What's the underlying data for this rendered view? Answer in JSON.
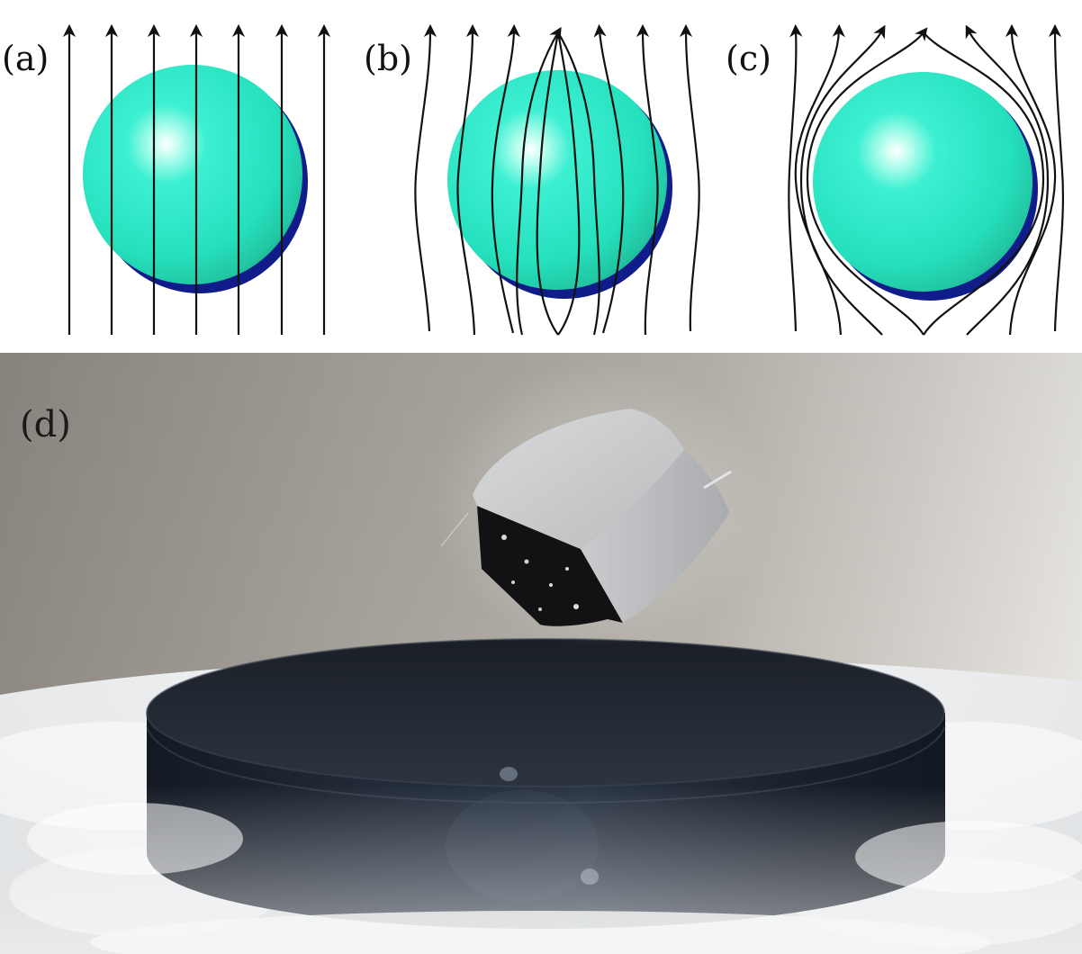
{
  "panels": [
    {
      "id": "a",
      "label": "(a)",
      "state": "normal-field-penetration"
    },
    {
      "id": "b",
      "label": "(b)",
      "state": "field-concentrated-through-sphere"
    },
    {
      "id": "c",
      "label": "(c)",
      "state": "field-expelled-meissner"
    }
  ],
  "photo": {
    "label": "(d)",
    "subject": "magnet-levitating-over-superconductor"
  },
  "colors": {
    "sphere_light": "#c8fff2",
    "sphere_main": "#27e6c2",
    "sphere_edge": "#24c99a",
    "sphere_shadow": "#101c8a",
    "field_line": "#111111",
    "background": "#ffffff"
  }
}
